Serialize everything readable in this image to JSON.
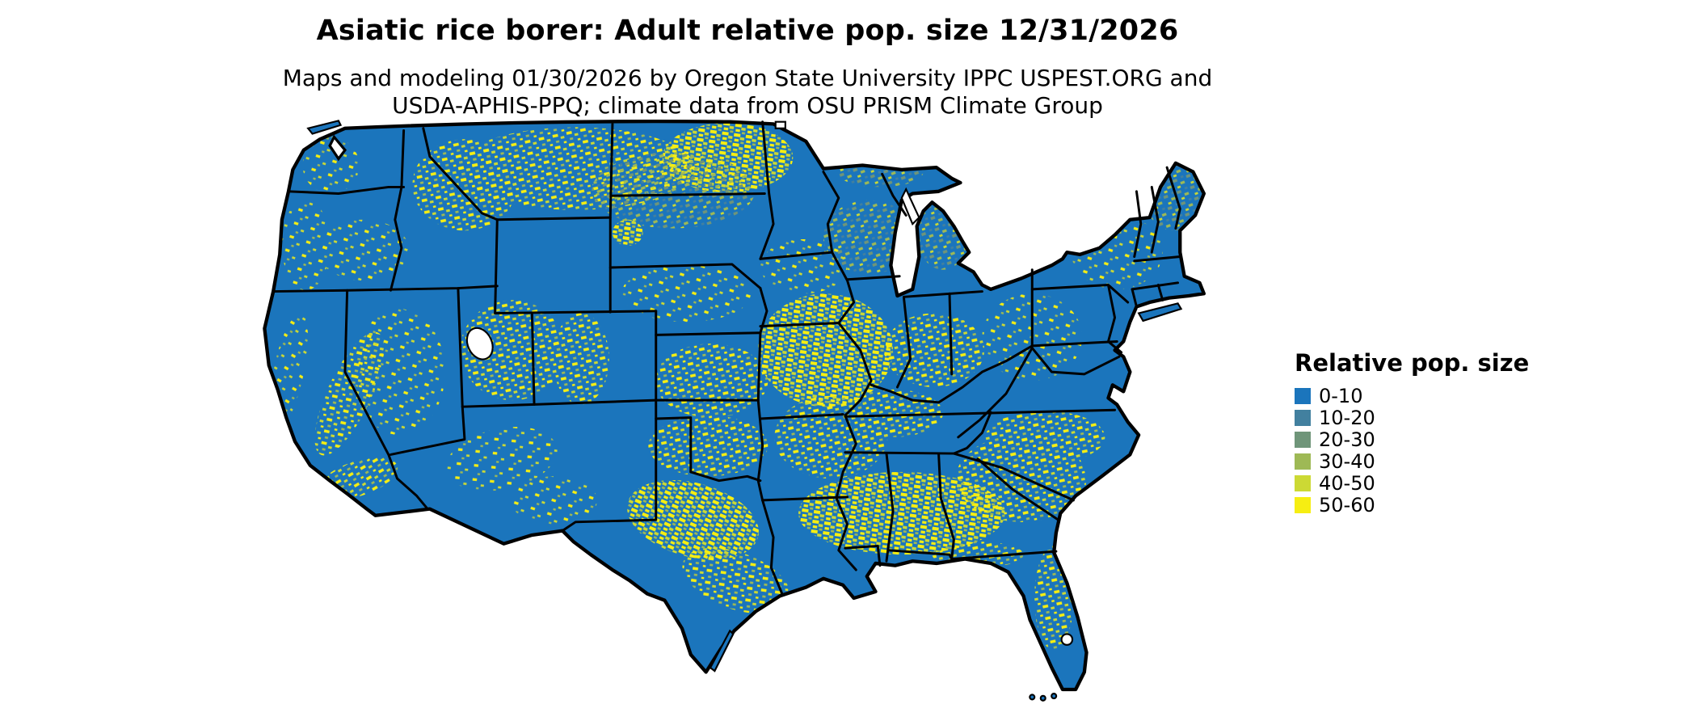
{
  "header": {
    "title": "Asiatic rice borer: Adult relative pop. size 12/31/2026",
    "subtitle_line1": "Maps and modeling 01/30/2026 by Oregon State University IPPC USPEST.ORG and",
    "subtitle_line2": "USDA-APHIS-PPQ; climate data from OSU PRISM Climate Group"
  },
  "legend": {
    "title": "Relative pop. size",
    "items": [
      {
        "label": "0-10",
        "color": "#1b75bc"
      },
      {
        "label": "10-20",
        "color": "#42809f"
      },
      {
        "label": "20-30",
        "color": "#6f9579"
      },
      {
        "label": "30-40",
        "color": "#9eb955"
      },
      {
        "label": "40-50",
        "color": "#ccd934"
      },
      {
        "label": "50-60",
        "color": "#f6ee12"
      }
    ]
  },
  "map": {
    "region": "Contiguous United States",
    "base_color": "#1b75bc",
    "border_color": "#000000",
    "water_color": "#ffffff"
  }
}
